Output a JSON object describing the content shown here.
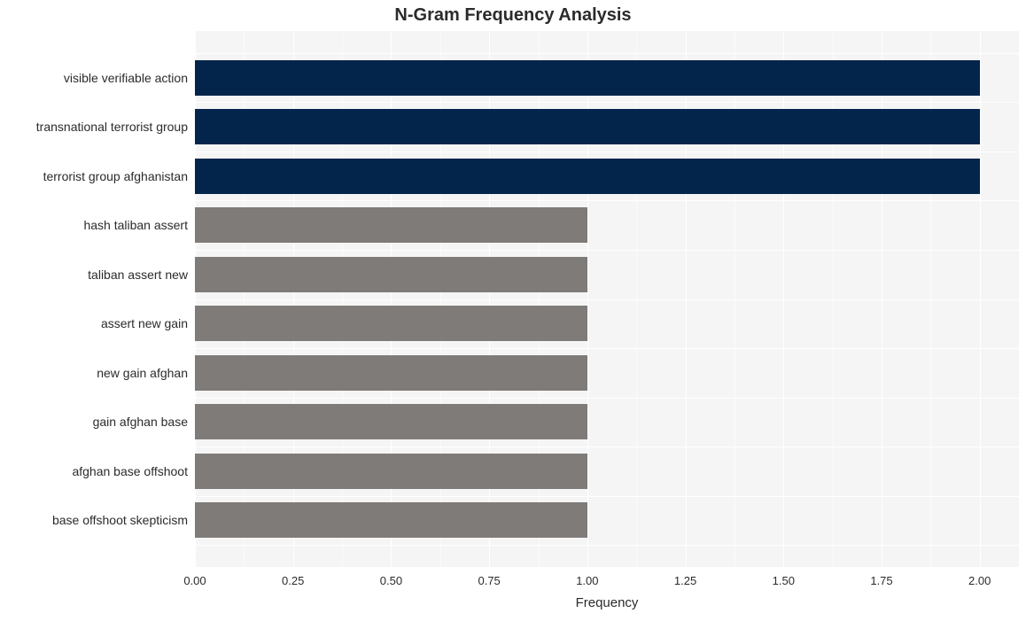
{
  "chart": {
    "type": "bar-horizontal",
    "title": "N-Gram Frequency Analysis",
    "title_fontsize": 20,
    "title_fontweight": "bold",
    "xlabel": "Frequency",
    "xlabel_fontsize": 15,
    "ylabel_fontsize": 14,
    "tick_fontsize": 13,
    "background_color": "#ffffff",
    "panel_band_color": "#f5f5f5",
    "grid_major_color": "#ffffff",
    "grid_minor_color": "#ffffff",
    "text_color": "#2b2b2b",
    "bar_colors": {
      "primary": "#03254c",
      "secondary": "#7f7b78"
    },
    "xlim": [
      0.0,
      2.1
    ],
    "xticks": [
      0.0,
      0.25,
      0.5,
      0.75,
      1.0,
      1.25,
      1.5,
      1.75,
      2.0
    ],
    "xtick_labels": [
      "0.00",
      "0.25",
      "0.50",
      "0.75",
      "1.00",
      "1.25",
      "1.50",
      "1.75",
      "2.00"
    ],
    "bar_width_ratio": 0.72,
    "categories": [
      "visible verifiable action",
      "transnational terrorist group",
      "terrorist group afghanistan",
      "hash taliban assert",
      "taliban assert new",
      "assert new gain",
      "new gain afghan",
      "gain afghan base",
      "afghan base offshoot",
      "base offshoot skepticism"
    ],
    "values": [
      2.0,
      2.0,
      2.0,
      1.0,
      1.0,
      1.0,
      1.0,
      1.0,
      1.0,
      1.0
    ],
    "value_colors": [
      "#03254c",
      "#03254c",
      "#03254c",
      "#7f7b78",
      "#7f7b78",
      "#7f7b78",
      "#7f7b78",
      "#7f7b78",
      "#7f7b78",
      "#7f7b78"
    ],
    "plot_inset": {
      "top_pad_ratio": 0.041,
      "bottom_pad_ratio": 0.041
    }
  }
}
